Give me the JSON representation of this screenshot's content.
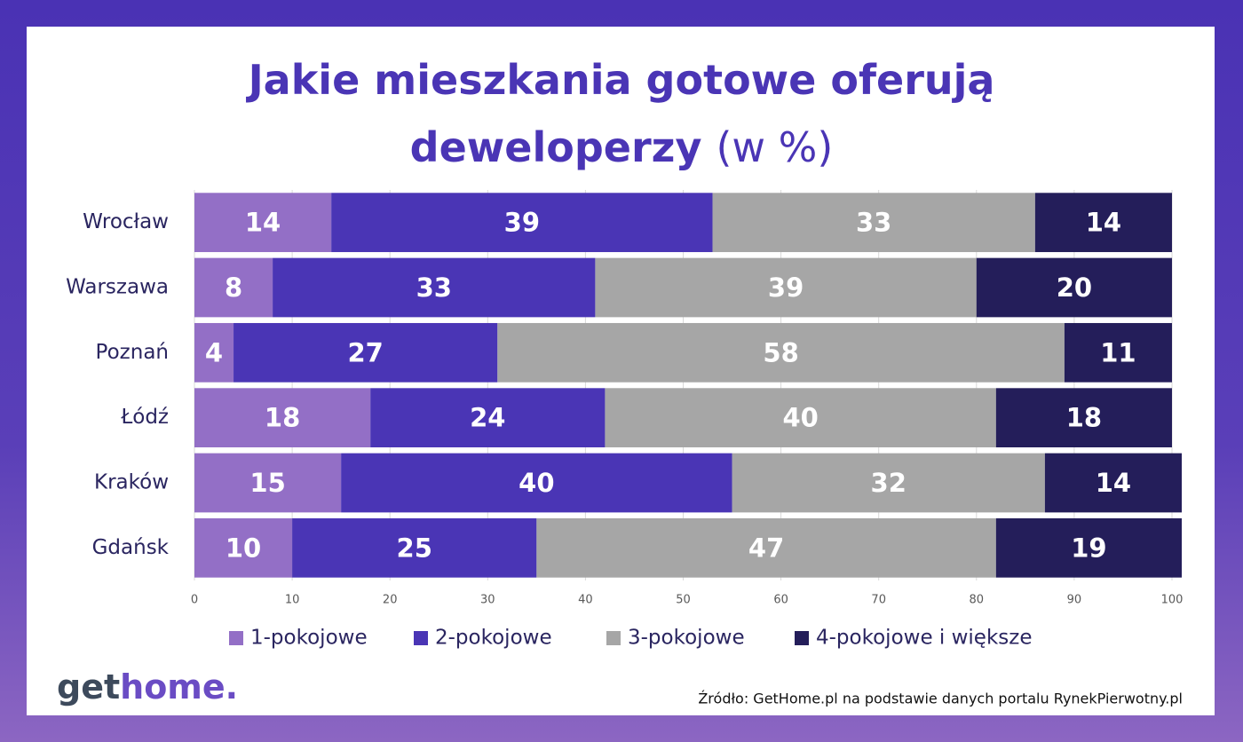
{
  "chart_data": {
    "type": "stacked-barh",
    "title": "Jakie mieszkania gotowe oferują deweloperzy",
    "subtitle": "(w %)",
    "categories": [
      "Wrocław",
      "Warszawa",
      "Poznań",
      "Łódź",
      "Kraków",
      "Gdańsk"
    ],
    "series": [
      {
        "name": "1-pokojowe",
        "color": "#936fc6",
        "values": [
          14,
          8,
          4,
          18,
          15,
          10
        ]
      },
      {
        "name": "2-pokojowe",
        "color": "#4a35b5",
        "values": [
          39,
          33,
          27,
          24,
          40,
          25
        ]
      },
      {
        "name": "3-pokojowe",
        "color": "#a6a6a6",
        "values": [
          33,
          39,
          58,
          40,
          32,
          47
        ]
      },
      {
        "name": "4-pokojowe i większe",
        "color": "#241e5a",
        "values": [
          14,
          20,
          11,
          18,
          14,
          19
        ]
      }
    ],
    "xlim": [
      0,
      100
    ],
    "xticks": [
      0,
      10,
      20,
      30,
      40,
      50,
      60,
      70,
      80,
      90,
      100
    ],
    "grid": true,
    "legend": "bottom"
  },
  "logo_parts": [
    "get",
    "home."
  ],
  "source": "Źródło: GetHome.pl na podstawie danych portalu RynekPierwotny.pl"
}
